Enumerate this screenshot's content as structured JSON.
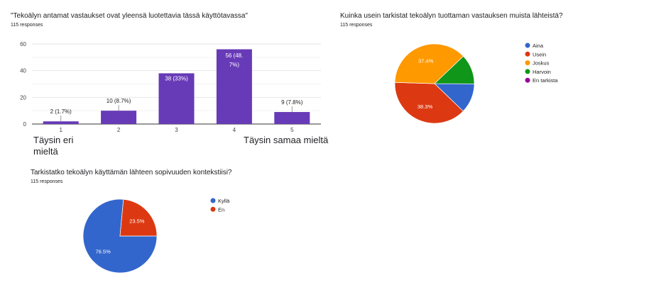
{
  "chart_data": [
    {
      "type": "bar",
      "title": "\"Tekoälyn antamat vastaukset ovat yleensä luotettavia tässä käyttötavassa\"",
      "subtitle": "115 responses",
      "categories": [
        "1",
        "2",
        "3",
        "4",
        "5"
      ],
      "values": [
        2,
        10,
        38,
        56,
        9
      ],
      "data_labels": [
        "2 (1.7%)",
        "10 (8.7%)",
        "38 (33%)",
        "56 (48.7%)",
        "9 (7.8%)"
      ],
      "scale_labels": {
        "low": "Täysin eri mieltä",
        "high": "Täysin samaa mieltä"
      },
      "ylim": [
        0,
        60
      ],
      "yticks": [
        0,
        20,
        40,
        60
      ],
      "grid": true,
      "color": "#673ab7"
    },
    {
      "type": "pie",
      "title": "Kuinka usein tarkistat tekoälyn tuottaman vastauksen muista lähteistä?",
      "subtitle": "115 responses",
      "legend_position": "right",
      "slices": [
        {
          "label": "Aina",
          "percent": 12.2,
          "color": "#3366cc",
          "data_label": ""
        },
        {
          "label": "Usein",
          "percent": 38.3,
          "color": "#dc3912",
          "data_label": "38.3%"
        },
        {
          "label": "Joskus",
          "percent": 37.4,
          "color": "#ff9900",
          "data_label": "37.4%"
        },
        {
          "label": "Harvoin",
          "percent": 12.2,
          "color": "#109618",
          "data_label": ""
        },
        {
          "label": "En tarkista",
          "percent": 0,
          "color": "#990099",
          "data_label": ""
        }
      ]
    },
    {
      "type": "pie",
      "title": "Tarkistatko tekoälyn käyttämän lähteen sopivuuden kontekstiisi?",
      "subtitle": "115 responses",
      "legend_position": "right",
      "slices": [
        {
          "label": "Kyllä",
          "percent": 76.5,
          "color": "#3366cc",
          "data_label": "76.5%"
        },
        {
          "label": "En",
          "percent": 23.5,
          "color": "#dc3912",
          "data_label": "23.5%"
        }
      ]
    }
  ]
}
